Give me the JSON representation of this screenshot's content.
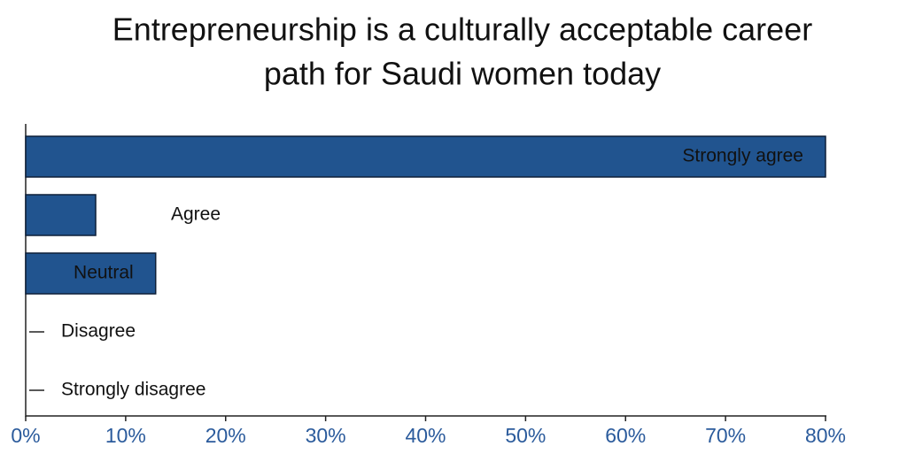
{
  "chart_data": {
    "type": "bar",
    "orientation": "horizontal",
    "title": [
      "Entrepreneurship is a culturally acceptable career",
      "path for Saudi women today"
    ],
    "categories": [
      "Strongly agree",
      "Agree",
      "Neutral",
      "Disagree",
      "Strongly disagree"
    ],
    "values": [
      80,
      7,
      13,
      0,
      0
    ],
    "color": "#21548f",
    "xlim": [
      0,
      80
    ],
    "xticks": [
      {
        "value": 0,
        "label": "0%"
      },
      {
        "value": 10,
        "label": "10%"
      },
      {
        "value": 20,
        "label": "20%"
      },
      {
        "value": 30,
        "label": "30%"
      },
      {
        "value": 40,
        "label": "40%"
      },
      {
        "value": 50,
        "label": "50%"
      },
      {
        "value": 60,
        "label": "60%"
      },
      {
        "value": 70,
        "label": "70%"
      },
      {
        "value": 80,
        "label": "80%"
      }
    ],
    "grid": false
  }
}
